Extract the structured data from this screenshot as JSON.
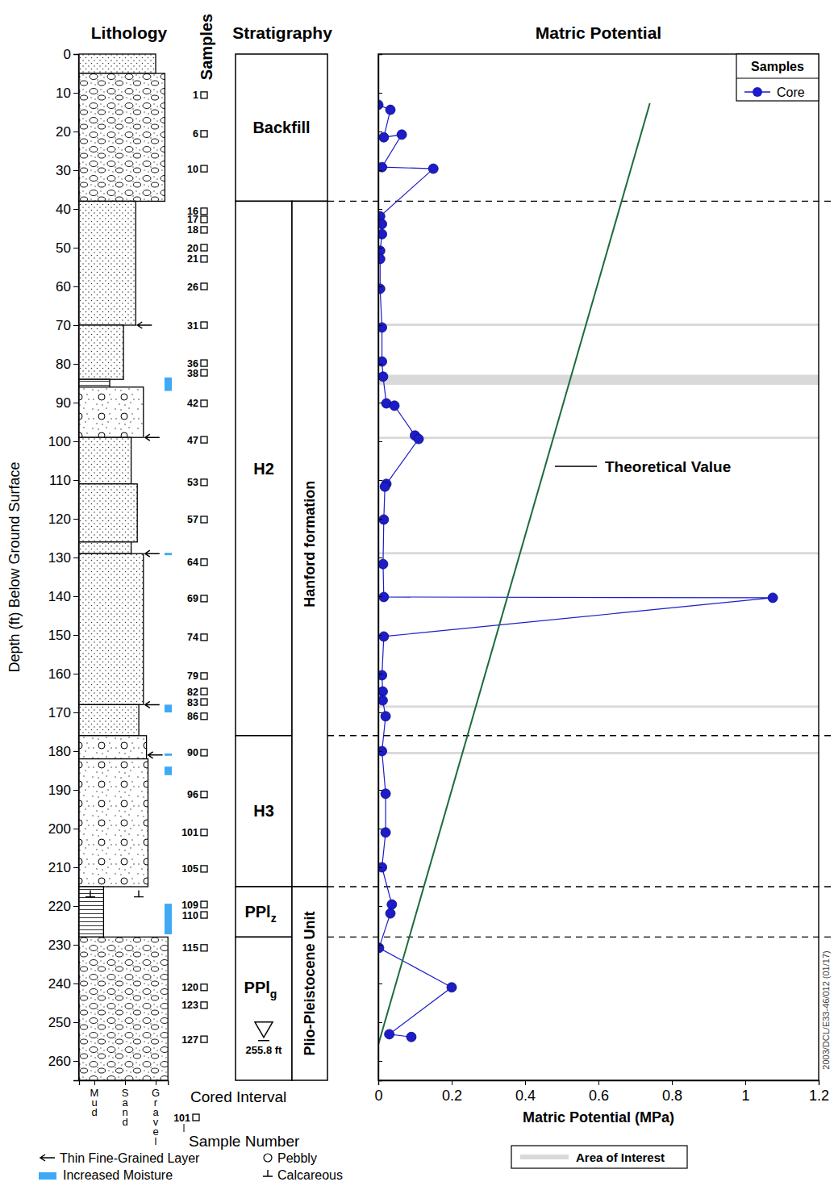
{
  "headers": {
    "lithology": "Lithology",
    "samples": "Samples",
    "stratigraphy": "Stratigraphy"
  },
  "chart_data": {
    "type": "line",
    "title": "Matric Potential",
    "x_label": "Matric Potential (MPa)",
    "y_label": "Depth (ft) Below Ground Surface",
    "xlim": [
      0,
      1.2
    ],
    "xticks": [
      0,
      0.2,
      0.4,
      0.6,
      0.8,
      1,
      1.2
    ],
    "ylim": [
      0,
      265
    ],
    "yticks": [
      0,
      10,
      20,
      30,
      40,
      50,
      60,
      70,
      80,
      90,
      100,
      110,
      120,
      130,
      140,
      150,
      160,
      170,
      180,
      190,
      200,
      210,
      220,
      230,
      240,
      250,
      260
    ],
    "legend": "top-right",
    "legend_title": "Samples",
    "series": [
      {
        "name": "Core",
        "color": "#1c1cc8",
        "marker": "circle",
        "line_style": "solid",
        "x": [
          0.0,
          0.033,
          0.015,
          0.064,
          0.01,
          0.15,
          0.005,
          0.01,
          0.01,
          0.005,
          0.005,
          0.005,
          0.01,
          0.01,
          0.013,
          0.022,
          0.044,
          0.1,
          0.11,
          0.022,
          0.018,
          0.015,
          0.013,
          0.015,
          1.075,
          0.015,
          0.01,
          0.012,
          0.012,
          0.02,
          0.01,
          0.02,
          0.02,
          0.01,
          0.037,
          0.033,
          0.002,
          0.2,
          0.03,
          0.09
        ],
        "y": [
          13.1,
          14.4,
          21.5,
          20.8,
          29.2,
          29.6,
          41.9,
          43.9,
          46.5,
          50.8,
          52.9,
          60.6,
          70.6,
          79.4,
          83.3,
          90.2,
          90.8,
          98.5,
          99.4,
          111,
          111.7,
          120.2,
          131.7,
          140.2,
          140.4,
          150.4,
          160.4,
          164.6,
          166.9,
          171,
          180,
          191,
          201,
          210,
          219.6,
          221.9,
          230.8,
          241,
          253.1,
          253.8
        ]
      },
      {
        "name": "Theoretical Value",
        "color": "#1e6b3c",
        "marker": "none",
        "line_style": "solid",
        "x": [
          0,
          0.74
        ],
        "y": [
          255.8,
          12.7
        ]
      }
    ],
    "area_of_interest": {
      "label": "Area of Interest",
      "color": "#d9d9d9",
      "bands": [
        [
          69.6,
          70.2
        ],
        [
          82.8,
          85.4
        ],
        [
          98.8,
          99.4
        ],
        [
          128.6,
          129.2
        ],
        [
          168.2,
          168.8
        ],
        [
          180.2,
          180.8
        ]
      ]
    }
  },
  "lithology": {
    "grain_lim": [
      -0.5,
      2.4
    ],
    "grain_ticks": [
      {
        "value": 0,
        "label": "Mud"
      },
      {
        "value": 1,
        "label": "Sand"
      },
      {
        "value": 2,
        "label": "Gravel"
      }
    ],
    "intervals": [
      {
        "top": 0,
        "bottom": 5,
        "grain": 2.0,
        "texture": "sand"
      },
      {
        "top": 5,
        "bottom": 38,
        "grain": 2.3,
        "texture": "gravel"
      },
      {
        "top": 38,
        "bottom": 70,
        "grain": 1.35,
        "texture": "sand"
      },
      {
        "top": 70,
        "bottom": 84,
        "grain": 0.95,
        "texture": "sand"
      },
      {
        "top": 84,
        "bottom": 86,
        "grain": 0.5,
        "texture": "mud"
      },
      {
        "top": 86,
        "bottom": 99,
        "grain": 1.6,
        "texture": "pebbly"
      },
      {
        "top": 99,
        "bottom": 111,
        "grain": 1.2,
        "texture": "sand"
      },
      {
        "top": 111,
        "bottom": 126,
        "grain": 1.4,
        "texture": "sand"
      },
      {
        "top": 126,
        "bottom": 129,
        "grain": 1.2,
        "texture": "sand"
      },
      {
        "top": 129,
        "bottom": 168,
        "grain": 1.6,
        "texture": "sand"
      },
      {
        "top": 168,
        "bottom": 176,
        "grain": 1.45,
        "texture": "sand"
      },
      {
        "top": 176,
        "bottom": 182,
        "grain": 1.7,
        "texture": "pebbly"
      },
      {
        "top": 182,
        "bottom": 215,
        "grain": 1.75,
        "texture": "pebbly"
      },
      {
        "top": 215,
        "bottom": 228,
        "grain": 0.3,
        "texture": "mud"
      },
      {
        "top": 228,
        "bottom": 265,
        "grain": 2.4,
        "texture": "gravel"
      }
    ],
    "thin_fine_layers": [
      70,
      99,
      129,
      168,
      181
    ],
    "moisture": [
      [
        83.5,
        87
      ],
      [
        128.8,
        129.4
      ],
      [
        168,
        170
      ],
      [
        180.6,
        181.2
      ],
      [
        184,
        186.2
      ],
      [
        219.4,
        227.3
      ]
    ],
    "calcareous": [
      217
    ]
  },
  "samples": [
    {
      "number": 1,
      "depth": 10.6
    },
    {
      "number": 6,
      "depth": 20.6
    },
    {
      "number": 10,
      "depth": 29.6
    },
    {
      "number": 16,
      "depth": 40.6
    },
    {
      "number": 17,
      "depth": 42.7
    },
    {
      "number": 18,
      "depth": 45.4
    },
    {
      "number": 20,
      "depth": 50
    },
    {
      "number": 21,
      "depth": 52.9
    },
    {
      "number": 26,
      "depth": 60
    },
    {
      "number": 31,
      "depth": 70
    },
    {
      "number": 36,
      "depth": 79.8
    },
    {
      "number": 38,
      "depth": 82.3
    },
    {
      "number": 42,
      "depth": 90.2
    },
    {
      "number": 47,
      "depth": 99.6
    },
    {
      "number": 53,
      "depth": 110.6
    },
    {
      "number": 57,
      "depth": 120.2
    },
    {
      "number": 64,
      "depth": 131.2
    },
    {
      "number": 69,
      "depth": 140.6
    },
    {
      "number": 74,
      "depth": 150.6
    },
    {
      "number": 79,
      "depth": 160.6
    },
    {
      "number": 82,
      "depth": 164.6
    },
    {
      "number": 83,
      "depth": 167.3
    },
    {
      "number": 86,
      "depth": 171
    },
    {
      "number": 90,
      "depth": 180.4
    },
    {
      "number": 96,
      "depth": 191.2
    },
    {
      "number": 101,
      "depth": 201
    },
    {
      "number": 105,
      "depth": 210.4
    },
    {
      "number": 109,
      "depth": 219.6
    },
    {
      "number": 110,
      "depth": 222.3
    },
    {
      "number": 115,
      "depth": 230.8
    },
    {
      "number": 120,
      "depth": 241
    },
    {
      "number": 123,
      "depth": 245.6
    },
    {
      "number": 127,
      "depth": 254.4
    }
  ],
  "stratigraphy": {
    "units": [
      {
        "label": "Backfill",
        "top": 0,
        "bottom": 38
      },
      {
        "label": "H2",
        "top": 38,
        "bottom": 176
      },
      {
        "label": "H3",
        "top": 176,
        "bottom": 215
      },
      {
        "label": "PPl",
        "subscript": "z",
        "top": 215,
        "bottom": 228
      },
      {
        "label": "PPl",
        "subscript": "g",
        "top": 228,
        "bottom": 265
      }
    ],
    "groups": [
      {
        "label": "Hanford formation",
        "top": 38,
        "bottom": 215
      },
      {
        "label": "Plio-Pleistocene Unit",
        "top": 215,
        "bottom": 265
      }
    ],
    "water_table": {
      "depth": 255.8,
      "label": "255.8 ft"
    }
  },
  "legend": {
    "cored_interval": "Cored Interval",
    "sample_example": 101,
    "sample_number": "Sample Number",
    "thin_fine_layer": "Thin Fine-Grained Layer",
    "pebbly": "Pebbly",
    "increased_moisture": "Increased Moisture",
    "calcareous": "Calcareous"
  },
  "source": "2003/DCL/E33-46/012 (01/17)"
}
